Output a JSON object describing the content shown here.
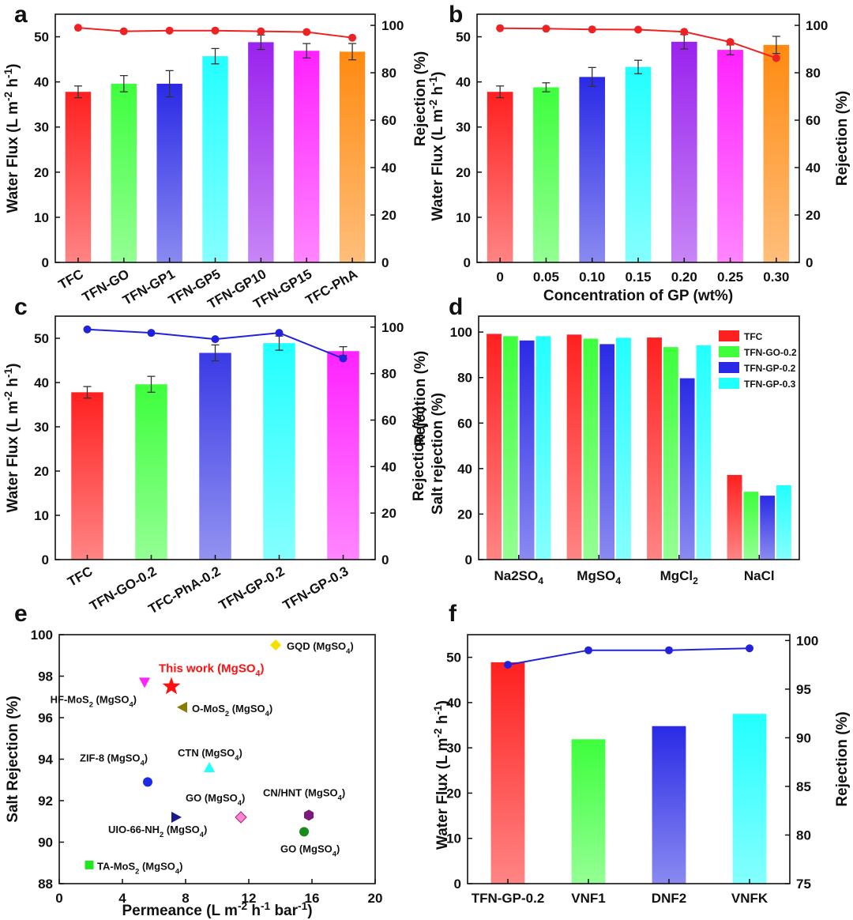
{
  "panels": {
    "a": "a",
    "b": "b",
    "c": "c",
    "d": "d",
    "e": "e",
    "f": "f"
  },
  "chart_data": [
    {
      "id": "a",
      "type": "bar+line",
      "categories": [
        "TFC",
        "TFN-GO",
        "TFN-GP1",
        "TFN-GP5",
        "TFN-GP10",
        "TFN-GP15",
        "TFC-PhA"
      ],
      "series": [
        {
          "name": "Water Flux",
          "axis": "left",
          "values": [
            37.8,
            39.6,
            39.6,
            45.7,
            48.8,
            46.9,
            46.7
          ],
          "errors": [
            1.3,
            1.8,
            2.9,
            1.7,
            1.6,
            1.6,
            1.8
          ]
        },
        {
          "name": "Rejection",
          "axis": "right",
          "values": [
            99.0,
            97.5,
            97.8,
            97.8,
            97.5,
            97.2,
            94.8
          ],
          "color": "#ee2222"
        }
      ],
      "bar_colors": [
        "#ff2020",
        "#3dff3d",
        "#2a2ae6",
        "#22ffff",
        "#9a22ee",
        "#ff22ff",
        "#ff8a10"
      ],
      "ylabel": "Water Flux (L m-2 h-1)",
      "y2label": "Rejection (%)",
      "ylim": [
        0,
        55
      ],
      "y2lim": [
        0,
        104.7
      ],
      "yticks": [
        "0",
        "10",
        "20",
        "30",
        "40",
        "50"
      ],
      "y2ticks": [
        "0",
        "20",
        "40",
        "60",
        "80",
        "100"
      ]
    },
    {
      "id": "b",
      "type": "bar+line",
      "categories": [
        "0",
        "0.05",
        "0.10",
        "0.15",
        "0.20",
        "0.25",
        "0.30"
      ],
      "series": [
        {
          "name": "Water Flux",
          "axis": "left",
          "values": [
            37.8,
            38.8,
            41.1,
            43.3,
            48.9,
            47.1,
            48.2
          ],
          "errors": [
            1.3,
            1.0,
            2.1,
            1.5,
            1.6,
            1.1,
            1.9
          ]
        },
        {
          "name": "Rejection",
          "axis": "right",
          "values": [
            98.8,
            98.6,
            98.3,
            98.2,
            97.3,
            93.0,
            86.2
          ],
          "color": "#ee2222"
        }
      ],
      "bar_colors": [
        "#ff2020",
        "#3dff3d",
        "#2a2ae6",
        "#22ffff",
        "#9a22ee",
        "#ff22ff",
        "#ff8a10"
      ],
      "xlabel": "Concentration of GP (wt%)",
      "ylabel": "Water Flux (L m-2 h-1)",
      "y2label": "Rejection (%)",
      "ylim": [
        0,
        55
      ],
      "y2lim": [
        0,
        104.7
      ],
      "yticks": [
        "0",
        "10",
        "20",
        "30",
        "40",
        "50"
      ],
      "y2ticks": [
        "0",
        "20",
        "40",
        "60",
        "80",
        "100"
      ]
    },
    {
      "id": "c",
      "type": "bar+line",
      "categories": [
        "TFC",
        "TFN-GO-0.2",
        "TFC-PhA-0.2",
        "TFN-GP-0.2",
        "TFN-GP-0.3"
      ],
      "series": [
        {
          "name": "Water Flux",
          "axis": "left",
          "values": [
            37.8,
            39.6,
            46.7,
            48.9,
            47.1
          ],
          "errors": [
            1.3,
            1.8,
            1.8,
            1.6,
            1.0
          ]
        },
        {
          "name": "Rejection",
          "axis": "right",
          "values": [
            99.0,
            97.5,
            94.8,
            97.5,
            86.5
          ],
          "color": "#2222dd"
        }
      ],
      "bar_colors": [
        "#ff2020",
        "#3dff3d",
        "#3a3ae6",
        "#22ffff",
        "#ff22ff"
      ],
      "ylabel": "Water Flux (L m-2 h-1)",
      "y2label": "Rejection (%)",
      "ylim": [
        0,
        55
      ],
      "y2lim": [
        0,
        104.7
      ],
      "yticks": [
        "0",
        "10",
        "20",
        "30",
        "40",
        "50"
      ],
      "y2ticks": [
        "0",
        "20",
        "40",
        "60",
        "80",
        "100"
      ]
    },
    {
      "id": "d",
      "type": "bar",
      "categories": [
        "Na2SO4",
        "MgSO4",
        "MgCl2",
        "NaCl"
      ],
      "series": [
        {
          "name": "TFC",
          "color": "#ff2020",
          "values": [
            99.2,
            98.9,
            97.6,
            37.2
          ]
        },
        {
          "name": "TFN-GO-0.2",
          "color": "#3dff3d",
          "values": [
            98.2,
            97.1,
            93.4,
            29.8
          ]
        },
        {
          "name": "TFN-GP-0.2",
          "color": "#2a2ae6",
          "values": [
            96.3,
            94.7,
            79.7,
            28.1
          ]
        },
        {
          "name": "TFN-GP-0.3",
          "color": "#22ffff",
          "values": [
            98.2,
            97.5,
            94.2,
            32.7
          ]
        }
      ],
      "ylabel1": "Rejection (%)",
      "ylabel2": "Salt rejection (%)",
      "ylim": [
        0,
        107
      ],
      "yticks": [
        "0",
        "20",
        "40",
        "60",
        "80",
        "100"
      ]
    },
    {
      "id": "e",
      "type": "scatter",
      "xlabel": "Permeance (L m-2 h-1 bar-1)",
      "ylabel": "Salt Rejection (%)",
      "xlim": [
        0,
        20
      ],
      "ylim": [
        88,
        100
      ],
      "xticks": [
        "0",
        "4",
        "8",
        "12",
        "16",
        "20"
      ],
      "yticks": [
        "88",
        "90",
        "92",
        "94",
        "96",
        "98",
        "100"
      ],
      "points": [
        {
          "label": "GQD (MgSO4)",
          "x": 13.7,
          "y": 99.5,
          "marker": "diamond",
          "color": "#f5e000"
        },
        {
          "label": "This work (MgSO4)",
          "x": 7.1,
          "y": 97.5,
          "marker": "star",
          "color": "#ff1010",
          "highlight": true
        },
        {
          "label": "HF-MoS2 (MgSO4)",
          "x": 5.4,
          "y": 97.7,
          "marker": "triangle-down",
          "color": "#ff22ff"
        },
        {
          "label": "O-MoS2 (MgSO4)",
          "x": 7.8,
          "y": 96.5,
          "marker": "triangle-left",
          "color": "#8a7a00"
        },
        {
          "label": "CTN (MgSO4)",
          "x": 9.5,
          "y": 93.6,
          "marker": "triangle-up",
          "color": "#22ffff"
        },
        {
          "label": "ZIF-8 (MgSO4)",
          "x": 5.6,
          "y": 92.9,
          "marker": "circle",
          "color": "#1a2ae6"
        },
        {
          "label": "UIO-66-NH2 (MgSO4)",
          "x": 7.4,
          "y": 91.2,
          "marker": "triangle-right",
          "color": "#1a1a8a"
        },
        {
          "label": "GO (MgSO4)",
          "x": 11.5,
          "y": 91.2,
          "marker": "diamond",
          "color": "#ff88cc"
        },
        {
          "label": "CN/HNT (MgSO4)",
          "x": 15.8,
          "y": 91.3,
          "marker": "hexagon",
          "color": "#7a1a7a"
        },
        {
          "label": "GO (MgSO4)",
          "x": 15.5,
          "y": 90.5,
          "marker": "circle",
          "color": "#1a8a1a"
        },
        {
          "label": "TA-MoS2 (MgSO4)",
          "x": 1.9,
          "y": 88.9,
          "marker": "square",
          "color": "#22e622"
        }
      ]
    },
    {
      "id": "f",
      "type": "bar+line",
      "categories": [
        "TFN-GP-0.2",
        "VNF1",
        "DNF2",
        "VNFK"
      ],
      "series": [
        {
          "name": "Water Flux",
          "axis": "left",
          "values": [
            48.9,
            31.9,
            34.8,
            37.5
          ]
        },
        {
          "name": "Rejection",
          "axis": "right",
          "values": [
            97.5,
            99.0,
            99.0,
            99.2
          ],
          "color": "#2222dd"
        }
      ],
      "bar_colors": [
        "#ff2020",
        "#3dff3d",
        "#2a2ae6",
        "#22ffff"
      ],
      "ylabel": "Water Flux (L m-2 h-1)",
      "y2label": "Rejection (%)",
      "ylim": [
        0,
        55
      ],
      "y2lim": [
        75,
        100.6
      ],
      "yticks": [
        "0",
        "10",
        "20",
        "30",
        "40",
        "50"
      ],
      "y2ticks": [
        "75",
        "80",
        "85",
        "90",
        "95",
        "100"
      ]
    }
  ]
}
